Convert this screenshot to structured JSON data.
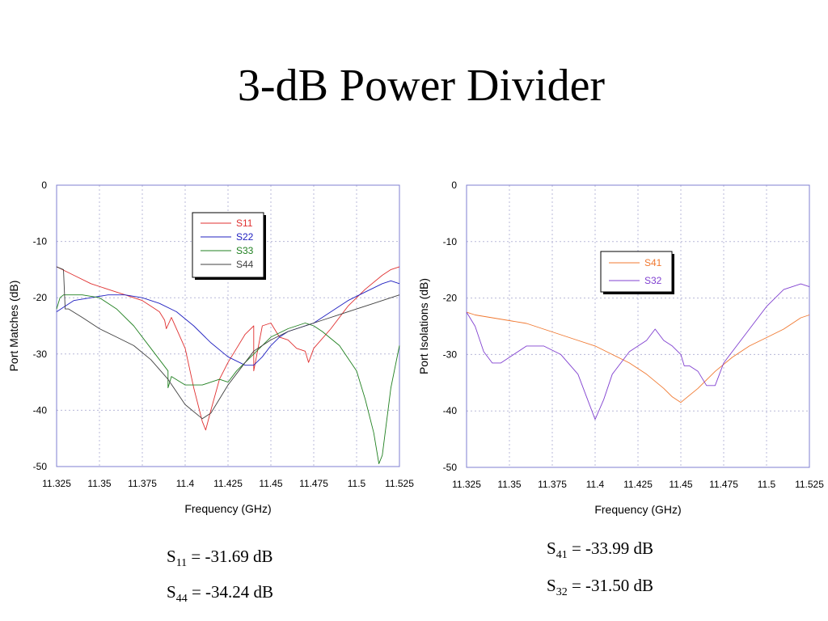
{
  "slide": {
    "title": "3-dB Power Divider"
  },
  "colors": {
    "grid": "#b8b8d8",
    "frame": "#7f7fd0"
  },
  "measurements": {
    "left": [
      {
        "sym": "S",
        "sub": "11",
        "text": " = -31.69 dB"
      },
      {
        "sym": "S",
        "sub": "44",
        "text": " = -34.24 dB"
      }
    ],
    "right": [
      {
        "sym": "S",
        "sub": "41",
        "text": " = -33.99 dB"
      },
      {
        "sym": "S",
        "sub": "32",
        "text": " = -31.50 dB"
      }
    ]
  },
  "chart_data": [
    {
      "type": "line",
      "title": "",
      "xlabel": "Frequency (GHz)",
      "ylabel": "Port Matches (dB)",
      "xlim": [
        11.325,
        11.525
      ],
      "ylim": [
        -50,
        0
      ],
      "xticks": [
        "11.325",
        "11.35",
        "11.375",
        "11.4",
        "11.425",
        "11.45",
        "11.475",
        "11.5",
        "11.525"
      ],
      "yticks": [
        "0",
        "-10",
        "-20",
        "-30",
        "-40",
        "-50"
      ],
      "grid": true,
      "legend_position": "top-center",
      "series": [
        {
          "name": "S11",
          "color": "#e03030",
          "x": [
            11.325,
            11.335,
            11.345,
            11.355,
            11.365,
            11.375,
            11.38,
            11.385,
            11.388,
            11.389,
            11.392,
            11.4,
            11.405,
            11.41,
            11.412,
            11.415,
            11.42,
            11.425,
            11.43,
            11.435,
            11.44,
            11.44,
            11.445,
            11.45,
            11.455,
            11.46,
            11.465,
            11.47,
            11.472,
            11.475,
            11.485,
            11.495,
            11.505,
            11.515,
            11.52,
            11.525
          ],
          "y": [
            -14.5,
            -16,
            -17.5,
            -18.5,
            -19.5,
            -20.5,
            -21.5,
            -22.5,
            -24,
            -25.5,
            -23.5,
            -29,
            -36,
            -42,
            -43.5,
            -40,
            -34.5,
            -31.5,
            -29,
            -26.5,
            -25,
            -33,
            -25,
            -24.5,
            -27,
            -27.5,
            -29,
            -29.5,
            -31.5,
            -29,
            -25.5,
            -21.5,
            -18.5,
            -16,
            -15,
            -14.5
          ]
        },
        {
          "name": "S22",
          "color": "#2020c0",
          "x": [
            11.325,
            11.33,
            11.335,
            11.345,
            11.355,
            11.365,
            11.375,
            11.385,
            11.395,
            11.405,
            11.415,
            11.425,
            11.435,
            11.44,
            11.445,
            11.45,
            11.455,
            11.46,
            11.465,
            11.475,
            11.485,
            11.495,
            11.505,
            11.515,
            11.52,
            11.525
          ],
          "y": [
            -22.5,
            -21.5,
            -20.5,
            -20,
            -19.5,
            -19.5,
            -20,
            -21,
            -22.5,
            -25,
            -28,
            -30.5,
            -32,
            -32,
            -30.5,
            -28.5,
            -27,
            -26,
            -25.5,
            -24.5,
            -22.5,
            -20.5,
            -19,
            -17.5,
            -17,
            -17.5
          ]
        },
        {
          "name": "S33",
          "color": "#208020",
          "x": [
            11.325,
            11.327,
            11.329,
            11.331,
            11.34,
            11.35,
            11.36,
            11.37,
            11.38,
            11.39,
            11.39,
            11.392,
            11.4,
            11.41,
            11.415,
            11.42,
            11.425,
            11.43,
            11.44,
            11.45,
            11.46,
            11.465,
            11.47,
            11.475,
            11.48,
            11.49,
            11.5,
            11.505,
            11.51,
            11.513,
            11.515,
            11.52,
            11.525
          ],
          "y": [
            -22,
            -20,
            -19.5,
            -19.5,
            -19.5,
            -20,
            -22,
            -25,
            -29,
            -33,
            -36,
            -34,
            -35.5,
            -35.5,
            -35,
            -34.5,
            -35,
            -33,
            -30,
            -27,
            -25.5,
            -25,
            -24.5,
            -25,
            -26,
            -28.5,
            -33,
            -38,
            -44,
            -49.5,
            -48,
            -36,
            -28.5
          ]
        },
        {
          "name": "S44",
          "color": "#404040",
          "x": [
            11.325,
            11.329,
            11.33,
            11.332,
            11.34,
            11.35,
            11.36,
            11.37,
            11.38,
            11.39,
            11.4,
            11.41,
            11.415,
            11.42,
            11.425,
            11.43,
            11.44,
            11.45,
            11.46,
            11.47,
            11.48,
            11.49,
            11.5,
            11.51,
            11.52,
            11.525
          ],
          "y": [
            -14.5,
            -15,
            -22,
            -22,
            -23.5,
            -25.5,
            -27,
            -28.5,
            -31,
            -34.5,
            -39,
            -41.5,
            -40.5,
            -38,
            -35.5,
            -33.5,
            -29.5,
            -27.5,
            -26,
            -25,
            -24,
            -23,
            -22,
            -21,
            -20,
            -19.5
          ]
        }
      ]
    },
    {
      "type": "line",
      "title": "",
      "xlabel": "Frequency (GHz)",
      "ylabel": "Port Isolations (dB)",
      "xlim": [
        11.325,
        11.525
      ],
      "ylim": [
        -50,
        0
      ],
      "xticks": [
        "11.325",
        "11.35",
        "11.375",
        "11.4",
        "11.425",
        "11.45",
        "11.475",
        "11.5",
        "11.525"
      ],
      "yticks": [
        "0",
        "-10",
        "-20",
        "-30",
        "-40",
        "-50"
      ],
      "grid": true,
      "legend_position": "upper-center-right",
      "series": [
        {
          "name": "S41",
          "color": "#f07830",
          "x": [
            11.325,
            11.33,
            11.34,
            11.35,
            11.36,
            11.37,
            11.38,
            11.39,
            11.4,
            11.41,
            11.42,
            11.43,
            11.44,
            11.445,
            11.45,
            11.452,
            11.46,
            11.47,
            11.48,
            11.49,
            11.5,
            11.51,
            11.52,
            11.525
          ],
          "y": [
            -22.5,
            -23,
            -23.5,
            -24,
            -24.5,
            -25.5,
            -26.5,
            -27.5,
            -28.5,
            -30,
            -31.5,
            -33.5,
            -36,
            -37.5,
            -38.5,
            -38,
            -36,
            -33,
            -30.5,
            -28.5,
            -27,
            -25.5,
            -23.5,
            -23
          ]
        },
        {
          "name": "S32",
          "color": "#8040d0",
          "x": [
            11.325,
            11.33,
            11.335,
            11.34,
            11.345,
            11.35,
            11.36,
            11.37,
            11.38,
            11.39,
            11.395,
            11.4,
            11.405,
            11.41,
            11.415,
            11.42,
            11.43,
            11.435,
            11.44,
            11.445,
            11.45,
            11.452,
            11.455,
            11.46,
            11.465,
            11.47,
            11.475,
            11.48,
            11.49,
            11.5,
            11.51,
            11.52,
            11.525
          ],
          "y": [
            -22.5,
            -25,
            -29.5,
            -31.5,
            -31.5,
            -30.5,
            -28.5,
            -28.5,
            -30,
            -33.5,
            -37.5,
            -41.5,
            -38,
            -33.5,
            -31.5,
            -29.5,
            -27.5,
            -25.5,
            -27.5,
            -28.5,
            -30,
            -32,
            -32,
            -33,
            -35.5,
            -35.5,
            -31.5,
            -29.5,
            -25.5,
            -21.5,
            -18.5,
            -17.5,
            -18
          ]
        }
      ]
    }
  ]
}
